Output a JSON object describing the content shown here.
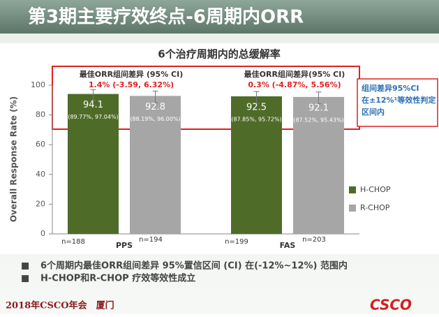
{
  "header": {
    "title": "第3期主要疗效终点-6周期内ORR"
  },
  "chart_data": {
    "type": "bar",
    "title": "6个治疗周期内的总缓解率",
    "y_label": "Overall Response Rate (%)",
    "categories": [
      "PPS",
      "FAS"
    ],
    "ylim": [
      0,
      100
    ],
    "yticks": [
      0,
      20,
      40,
      60,
      80,
      100
    ],
    "legend": "right",
    "series": [
      {
        "name": "H-CHOP",
        "color": "#4f6b28",
        "values": [
          94.1,
          92.5
        ],
        "ci": [
          [
            89.77,
            97.04
          ],
          [
            87.85,
            95.72
          ]
        ],
        "ci_labels": [
          "(89.77%, 97.04%)",
          "(87.85%, 95.72%)"
        ],
        "n_labels": [
          "n=188",
          "n=199"
        ]
      },
      {
        "name": "R-CHOP",
        "color": "#a6a6a6",
        "values": [
          92.8,
          92.1
        ],
        "ci": [
          [
            88.19,
            96.0
          ],
          [
            87.52,
            95.43
          ]
        ],
        "ci_labels": [
          "(88.19%, 96.00%)",
          "(87.52%, 95.43%)"
        ],
        "n_labels": [
          "n=194",
          "n=203"
        ]
      }
    ],
    "annotations": [
      {
        "title": "最佳ORR组间差异 (95% CI)",
        "text": "1.4% (-3.59, 6.32%)"
      },
      {
        "title": "最佳ORR组间差异(95% CI)",
        "text": "0.3% (-4.87%, 5.56%)"
      }
    ],
    "callout": [
      "组间差异95%CI",
      "在±12%¹等效性判定",
      "区间内"
    ]
  },
  "bullets": [
    "6个周期内最佳ORR组间差异 95%置信区间 (CI) 在(-12%~12%) 范围内",
    "H-CHOP和R-CHOP 疗效等效性成立"
  ],
  "footer": "2018年CSCO年会　厦门",
  "logo": "CSCO"
}
